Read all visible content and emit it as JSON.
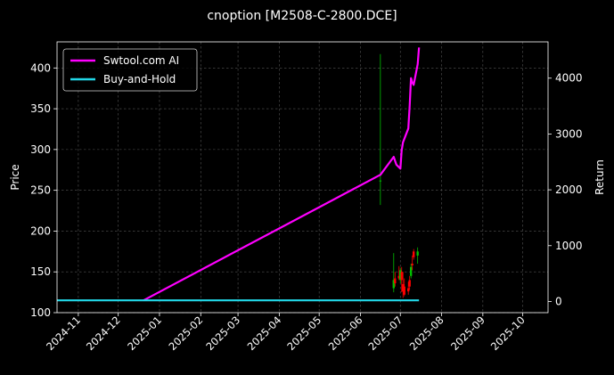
{
  "chart_data": {
    "type": "line",
    "title": "cnoption [M2508-C-2800.DCE]",
    "xlabel": "",
    "ylabel": "Price",
    "y2label": "Return",
    "xlim": [
      "2024-10-16",
      "2025-10-20"
    ],
    "ylim": [
      100,
      432
    ],
    "y2lim": [
      -200,
      4650
    ],
    "x_ticks": [
      "2024-11",
      "2024-12",
      "2025-01",
      "2025-02",
      "2025-03",
      "2025-04",
      "2025-05",
      "2025-06",
      "2025-07",
      "2025-08",
      "2025-09",
      "2025-10"
    ],
    "y_ticks": [
      100,
      150,
      200,
      250,
      300,
      350,
      400
    ],
    "y2_ticks": [
      0,
      1000,
      2000,
      3000,
      4000
    ],
    "grid": true,
    "legend": "top-left",
    "colors": {
      "up": "#00c000",
      "down": "#ff0000",
      "strategy": "#ff00ff",
      "benchmark": "#22d8e8"
    },
    "series": [
      {
        "name": "Swtool.com AI",
        "axis": "right",
        "x": [
          "2024-12-20",
          "2025-06-16",
          "2025-06-26",
          "2025-06-28",
          "2025-07-01",
          "2025-07-02",
          "2025-07-03",
          "2025-07-07",
          "2025-07-08",
          "2025-07-09",
          "2025-07-10",
          "2025-07-11",
          "2025-07-14",
          "2025-07-15"
        ],
        "values": [
          20,
          2270,
          2590,
          2450,
          2380,
          2700,
          2850,
          3100,
          3500,
          4000,
          3920,
          3880,
          4250,
          4550
        ]
      },
      {
        "name": "Buy-and-Hold",
        "axis": "right",
        "x": [
          "2024-10-16",
          "2025-07-15"
        ],
        "values": [
          20,
          20
        ]
      }
    ],
    "candles": [
      {
        "date": "2025-06-16",
        "open": 262,
        "high": 417,
        "low": 232,
        "close": 262
      },
      {
        "date": "2025-06-26",
        "open": 130,
        "high": 173,
        "low": 125,
        "close": 140
      },
      {
        "date": "2025-06-27",
        "open": 142,
        "high": 150,
        "low": 132,
        "close": 136
      },
      {
        "date": "2025-06-30",
        "open": 145,
        "high": 157,
        "low": 140,
        "close": 142
      },
      {
        "date": "2025-07-01",
        "open": 140,
        "high": 155,
        "low": 136,
        "close": 152
      },
      {
        "date": "2025-07-02",
        "open": 150,
        "high": 156,
        "low": 125,
        "close": 140
      },
      {
        "date": "2025-07-03",
        "open": 135,
        "high": 150,
        "low": 118,
        "close": 126
      },
      {
        "date": "2025-07-04",
        "open": 132,
        "high": 142,
        "low": 120,
        "close": 122
      },
      {
        "date": "2025-07-07",
        "open": 130,
        "high": 138,
        "low": 122,
        "close": 126
      },
      {
        "date": "2025-07-08",
        "open": 140,
        "high": 145,
        "low": 128,
        "close": 132
      },
      {
        "date": "2025-07-09",
        "open": 145,
        "high": 160,
        "low": 142,
        "close": 156
      },
      {
        "date": "2025-07-10",
        "open": 160,
        "high": 170,
        "low": 152,
        "close": 158
      },
      {
        "date": "2025-07-11",
        "open": 175,
        "high": 178,
        "low": 165,
        "close": 168
      },
      {
        "date": "2025-07-14",
        "open": 170,
        "high": 180,
        "low": 160,
        "close": 175
      }
    ]
  }
}
